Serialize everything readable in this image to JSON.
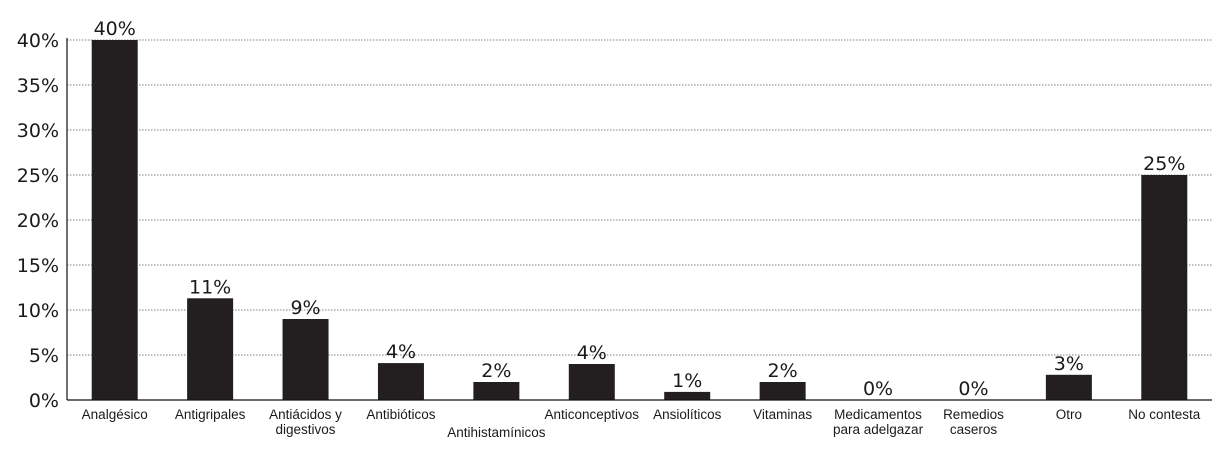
{
  "chart_data": {
    "type": "bar",
    "categories": [
      "Analgésico",
      "Antigripales",
      "Antiácidos y digestivos",
      "Antibióticos",
      "Antihistamínicos",
      "Anticonceptivos",
      "Ansiolíticos",
      "Vitaminas",
      "Medicamentos para adelgazar",
      "Remedios caseros",
      "Otro",
      "No contesta"
    ],
    "category_lines": [
      [
        "Analgésico"
      ],
      [
        "Antigripales"
      ],
      [
        "Antiácidos y",
        "digestivos"
      ],
      [
        "Antibióticos"
      ],
      [
        "Antihistamínicos"
      ],
      [
        "Anticonceptivos"
      ],
      [
        "Ansiolíticos"
      ],
      [
        "Vitaminas"
      ],
      [
        "Medicamentos",
        "para adelgazar"
      ],
      [
        "Remedios",
        "caseros"
      ],
      [
        "Otro"
      ],
      [
        "No contesta"
      ]
    ],
    "values": [
      40,
      11.3,
      9,
      4.1,
      2,
      4,
      0.9,
      2,
      0,
      0,
      2.8,
      25
    ],
    "data_labels": [
      "40%",
      "11%",
      "9%",
      "4%",
      "2%",
      "4%",
      "1%",
      "2%",
      "0%",
      "0%",
      "3%",
      "25%"
    ],
    "y_ticks": [
      0,
      5,
      10,
      15,
      20,
      25,
      30,
      35,
      40
    ],
    "y_tick_labels": [
      "0%",
      "5%",
      "10%",
      "15%",
      "20%",
      "25%",
      "30%",
      "35%",
      "40%"
    ],
    "ylim": [
      0,
      40
    ],
    "grid": true,
    "colors": {
      "bar": "#231f20",
      "grid": "#555555"
    },
    "title": "",
    "xlabel": "",
    "ylabel": ""
  }
}
